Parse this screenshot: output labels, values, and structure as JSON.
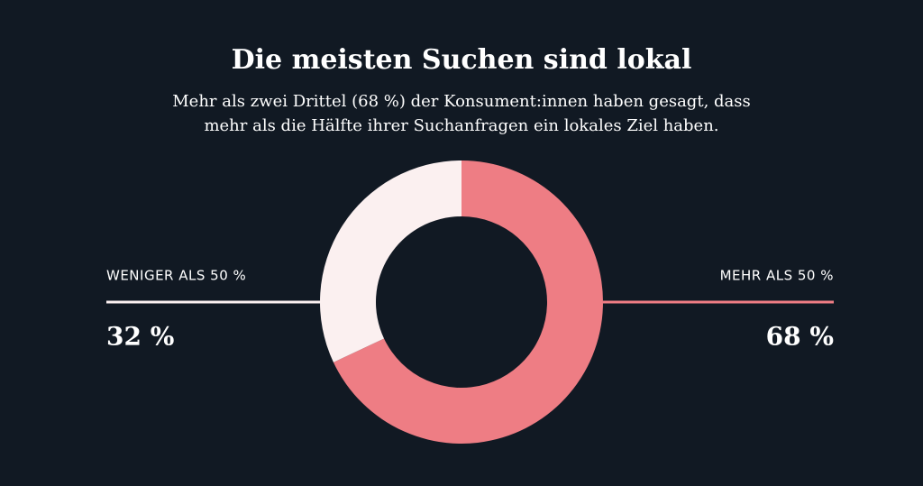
{
  "chart_data": {
    "type": "pie",
    "donut": true,
    "title": "Die meisten Suchen sind lokal",
    "subtitle": [
      "Mehr als zwei Drittel (68 %) der Konsument:innen haben gesagt, dass",
      "mehr als die Hälfte ihrer Suchanfragen ein lokales Ziel haben."
    ],
    "categories": [
      "MEHR ALS 50 %",
      "WENIGER ALS 50 %"
    ],
    "values": [
      68,
      32
    ],
    "value_labels": [
      "68 %",
      "32 %"
    ],
    "colors": [
      "#ee7d84",
      "#fbf0f0"
    ]
  }
}
